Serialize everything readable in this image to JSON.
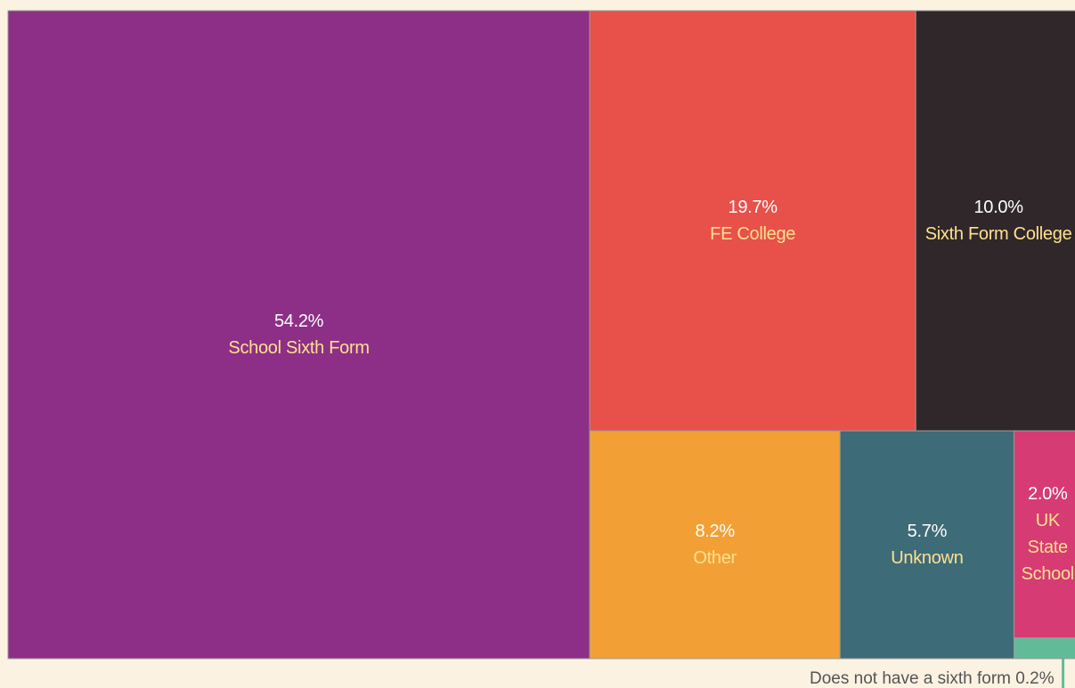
{
  "chart_data": {
    "type": "treemap",
    "categories": [
      "School Sixth Form",
      "FE College",
      "Sixth Form College",
      "Other",
      "Unknown",
      "UK State School",
      "Does not have a sixth form"
    ],
    "values": [
      54.2,
      19.7,
      10.0,
      8.2,
      5.7,
      2.0,
      0.2
    ],
    "value_labels": [
      "54.2%",
      "19.7%",
      "10.0%",
      "8.2%",
      "5.7%",
      "2.0%",
      "0.2%"
    ],
    "colors": [
      "#8d2f86",
      "#e8504a",
      "#2f2729",
      "#f2a035",
      "#3d6b77",
      "#d63b73",
      "#62bb98"
    ]
  }
}
